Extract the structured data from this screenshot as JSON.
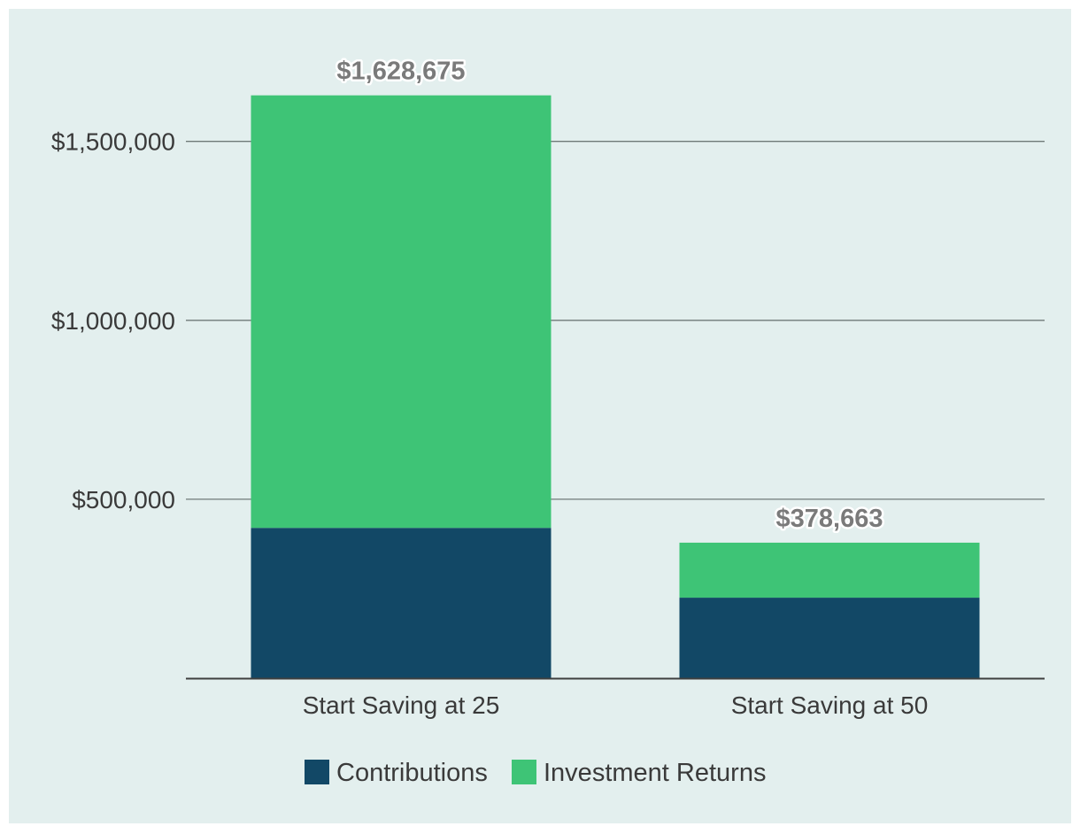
{
  "chart_data": {
    "type": "bar",
    "stacked": true,
    "categories": [
      "Start Saving at 25",
      "Start Saving at 50"
    ],
    "series": [
      {
        "name": "Contributions",
        "color": "#124866",
        "values": [
          420000,
          225000
        ]
      },
      {
        "name": "Investment Returns",
        "color": "#3ec476",
        "values": [
          1208675,
          153663
        ]
      }
    ],
    "totals": [
      1628675,
      378663
    ],
    "total_labels": [
      "$1,628,675",
      "$378,663"
    ],
    "yticks": [
      {
        "value": 500000,
        "label": "$500,000"
      },
      {
        "value": 1000000,
        "label": "$1,000,000"
      },
      {
        "value": 1500000,
        "label": "$1,500,000"
      }
    ],
    "ylim": [
      0,
      1750000
    ],
    "grid": true,
    "legend_position": "bottom-center",
    "title": "",
    "xlabel": "",
    "ylabel": "",
    "colors": {
      "background": "#e3efee",
      "grid": "#6f7a78",
      "axis": "#3f3f3f"
    }
  }
}
